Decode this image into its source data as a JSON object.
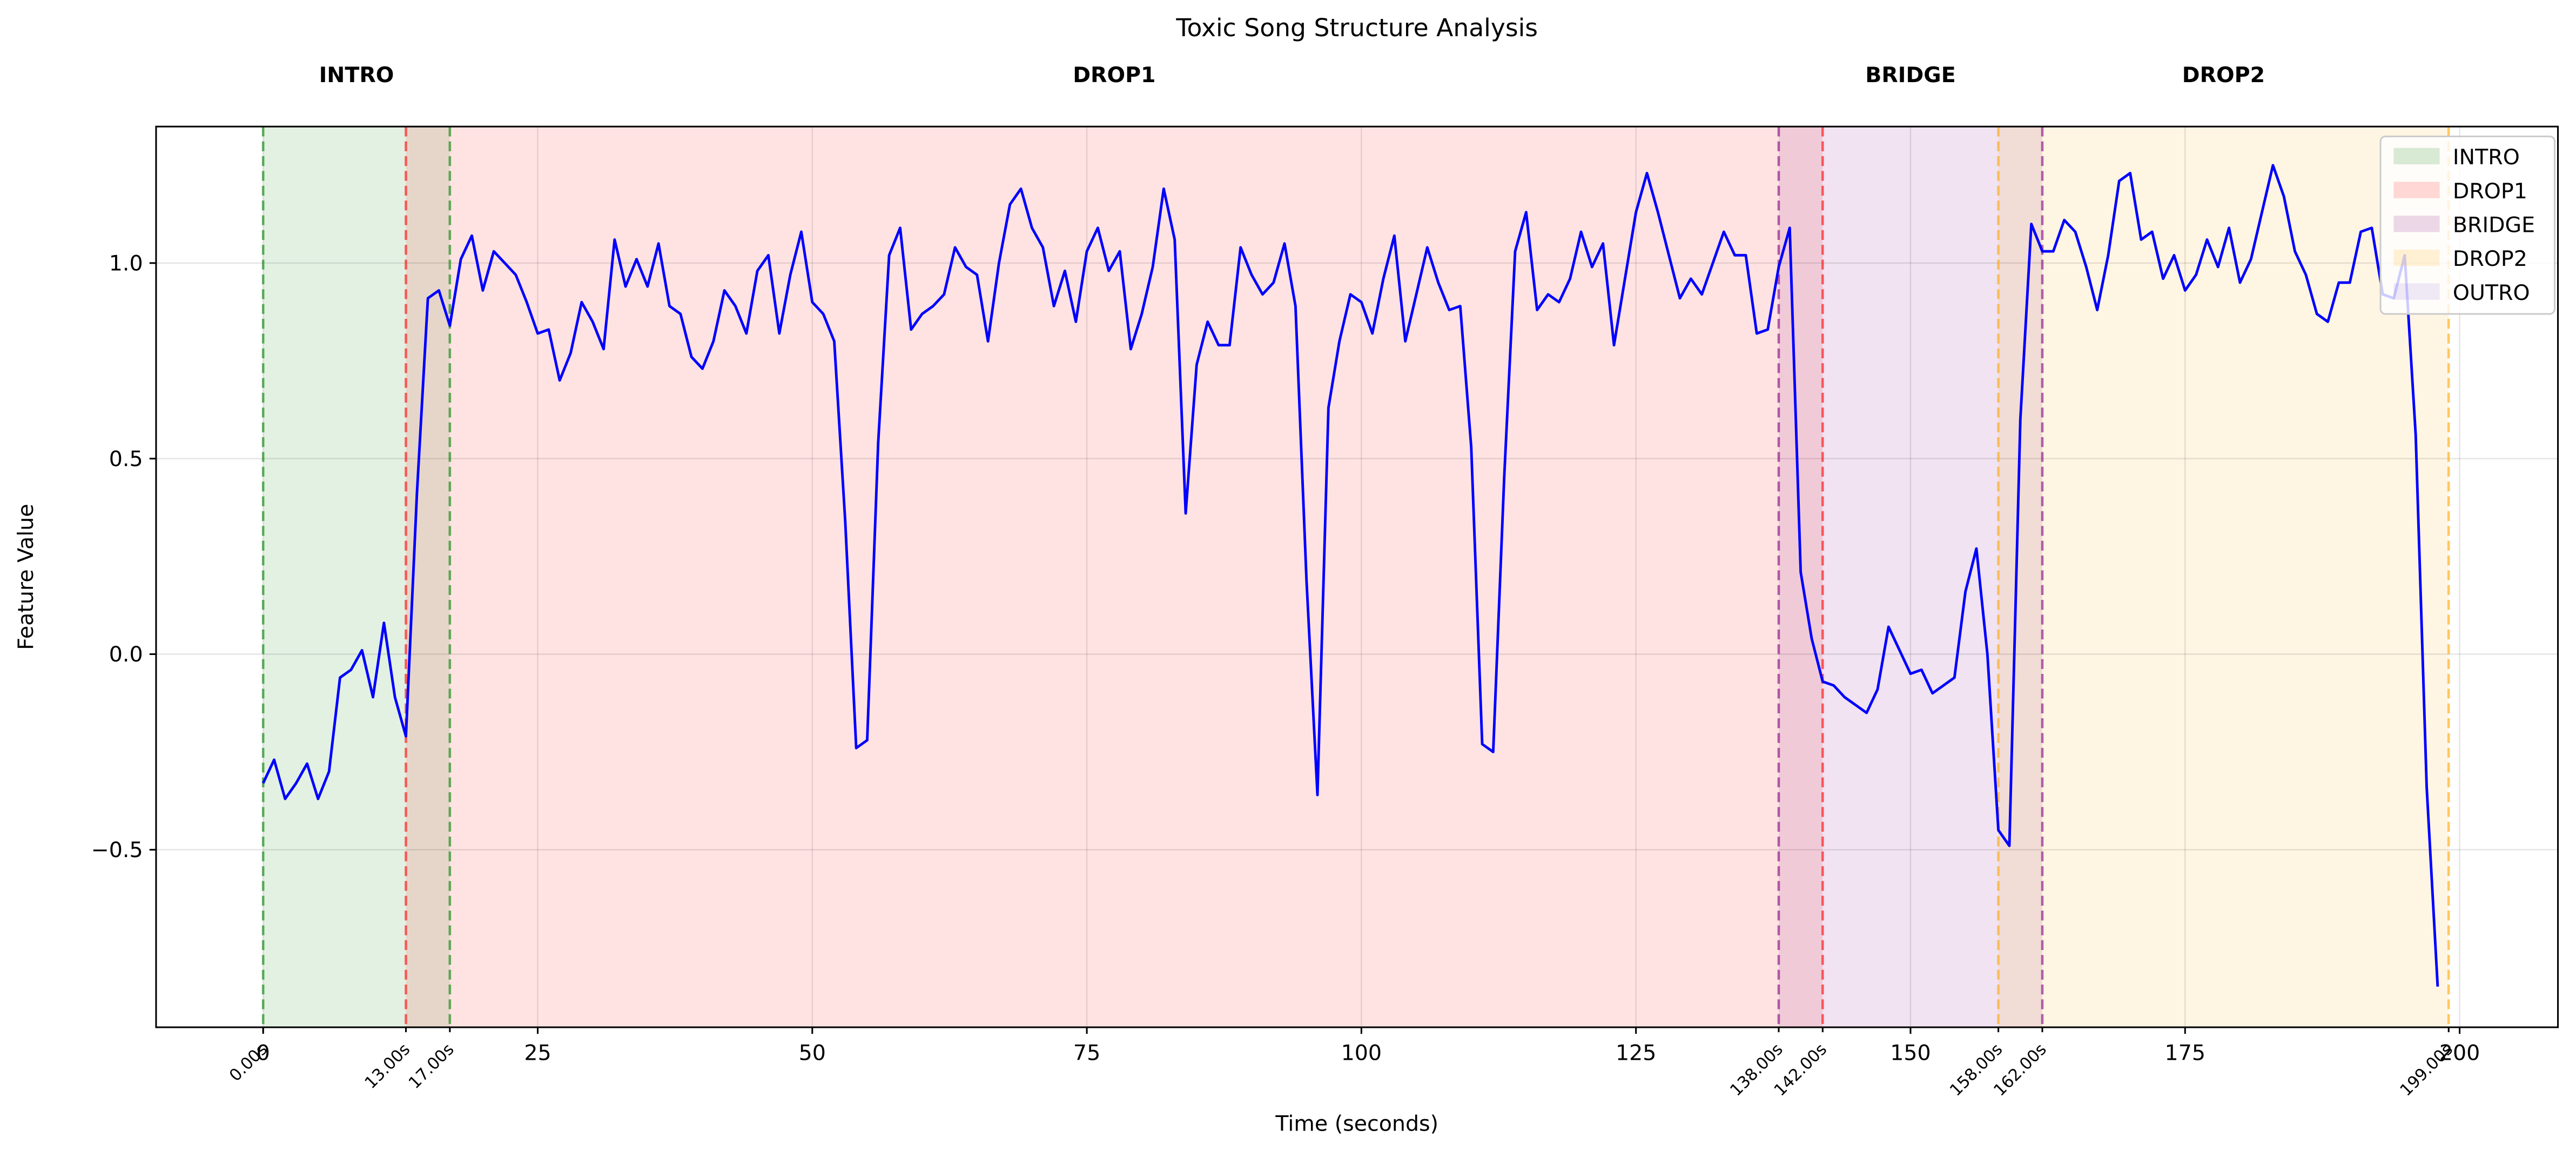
{
  "chart_data": {
    "type": "line",
    "title": "Toxic Song Structure Analysis",
    "x_label": "Time (seconds)",
    "y_label": "Feature Value",
    "xlim": [
      -9.75,
      208.95
    ],
    "ylim": [
      -0.954,
      1.349
    ],
    "xticks": [
      0,
      25,
      50,
      75,
      100,
      125,
      150,
      175,
      200
    ],
    "yticks": [
      {
        "value": -0.5,
        "label": "−0.5"
      },
      {
        "value": 0,
        "label": "0.0"
      },
      0.5,
      {
        "value": 1,
        "label": "1.0"
      }
    ],
    "grid": true,
    "legend": "upper right",
    "sections": [
      {
        "name": "INTRO",
        "start": 0,
        "end": 17,
        "color": "green"
      },
      {
        "name": "DROP1",
        "start": 13,
        "end": 142,
        "color": "red"
      },
      {
        "name": "BRIDGE",
        "start": 138,
        "end": 162,
        "color": "purple"
      },
      {
        "name": "DROP2",
        "start": 158,
        "end": 199,
        "color": "orange"
      },
      {
        "name": "OUTRO",
        "color": "#9370db"
      }
    ],
    "boundary_ticks": [
      {
        "value": 0,
        "label": "0.00s"
      },
      {
        "value": 13,
        "label": "13.00s"
      },
      {
        "value": 17,
        "label": "17.00s"
      },
      {
        "value": 138,
        "label": "138.00s"
      },
      {
        "value": 142,
        "label": "142.00s"
      },
      {
        "value": 158,
        "label": "158.00s"
      },
      {
        "value": 162,
        "label": "162.00s"
      },
      {
        "value": 199,
        "label": "199.00s"
      }
    ],
    "series": [
      {
        "color": "blue",
        "x": [
          0,
          1,
          2,
          3,
          4,
          5,
          6,
          7,
          8,
          9,
          10,
          11,
          12,
          13,
          14,
          15,
          16,
          17,
          18,
          19,
          20,
          21,
          22,
          23,
          24,
          25,
          26,
          27,
          28,
          29,
          30,
          31,
          32,
          33,
          34,
          35,
          36,
          37,
          38,
          39,
          40,
          41,
          42,
          43,
          44,
          45,
          46,
          47,
          48,
          49,
          50,
          51,
          52,
          53,
          54,
          55,
          56,
          57,
          58,
          59,
          60,
          61,
          62,
          63,
          64,
          65,
          66,
          67,
          68,
          69,
          70,
          71,
          72,
          73,
          74,
          75,
          76,
          77,
          78,
          79,
          80,
          81,
          82,
          83,
          84,
          85,
          86,
          87,
          88,
          89,
          90,
          91,
          92,
          93,
          94,
          95,
          96,
          97,
          98,
          99,
          100,
          101,
          102,
          103,
          104,
          105,
          106,
          107,
          108,
          109,
          110,
          111,
          112,
          113,
          114,
          115,
          116,
          117,
          118,
          119,
          120,
          121,
          122,
          123,
          124,
          125,
          126,
          127,
          128,
          129,
          130,
          131,
          132,
          133,
          134,
          135,
          136,
          137,
          138,
          139,
          140,
          141,
          142,
          143,
          144,
          145,
          146,
          147,
          148,
          149,
          150,
          151,
          152,
          153,
          154,
          155,
          156,
          157,
          158,
          159,
          160,
          161,
          162,
          163,
          164,
          165,
          166,
          167,
          168,
          169,
          170,
          171,
          172,
          173,
          174,
          175,
          176,
          177,
          178,
          179,
          180,
          181,
          182,
          183,
          184,
          185,
          186,
          187,
          188,
          189,
          190,
          191,
          192,
          193,
          194,
          195,
          196,
          197,
          198
        ],
        "values": [
          -0.33,
          -0.27,
          -0.37,
          -0.33,
          -0.28,
          -0.37,
          -0.3,
          -0.06,
          -0.04,
          0.01,
          -0.11,
          0.08,
          -0.11,
          -0.21,
          0.41,
          0.91,
          0.93,
          0.84,
          1.01,
          1.07,
          0.93,
          1.03,
          1.0,
          0.97,
          0.9,
          0.82,
          0.83,
          0.7,
          0.77,
          0.9,
          0.85,
          0.78,
          1.06,
          0.94,
          1.01,
          0.94,
          1.05,
          0.89,
          0.87,
          0.76,
          0.73,
          0.8,
          0.93,
          0.89,
          0.82,
          0.98,
          1.02,
          0.82,
          0.97,
          1.08,
          0.9,
          0.87,
          0.8,
          0.34,
          -0.24,
          -0.22,
          0.54,
          1.02,
          1.09,
          0.83,
          0.87,
          0.89,
          0.92,
          1.04,
          0.99,
          0.97,
          0.8,
          1.0,
          1.15,
          1.19,
          1.09,
          1.04,
          0.89,
          0.98,
          0.85,
          1.03,
          1.09,
          0.98,
          1.03,
          0.78,
          0.87,
          0.99,
          1.19,
          1.06,
          0.36,
          0.74,
          0.85,
          0.79,
          0.79,
          1.04,
          0.97,
          0.92,
          0.95,
          1.05,
          0.89,
          0.19,
          -0.36,
          0.63,
          0.8,
          0.92,
          0.9,
          0.82,
          0.96,
          1.07,
          0.8,
          0.92,
          1.04,
          0.95,
          0.88,
          0.89,
          0.53,
          -0.23,
          -0.25,
          0.45,
          1.03,
          1.13,
          0.88,
          0.92,
          0.9,
          0.96,
          1.08,
          0.99,
          1.05,
          0.79,
          0.96,
          1.13,
          1.23,
          1.13,
          1.02,
          0.91,
          0.96,
          0.92,
          1.0,
          1.08,
          1.02,
          1.02,
          0.82,
          0.83,
          0.99,
          1.09,
          0.21,
          0.04,
          -0.07,
          -0.08,
          -0.11,
          -0.13,
          -0.15,
          -0.09,
          0.07,
          0.01,
          -0.05,
          -0.04,
          -0.1,
          -0.08,
          -0.06,
          0.16,
          0.27,
          0.0,
          -0.45,
          -0.49,
          0.6,
          1.1,
          1.03,
          1.03,
          1.11,
          1.08,
          0.99,
          0.88,
          1.02,
          1.21,
          1.23,
          1.06,
          1.08,
          0.96,
          1.02,
          0.93,
          0.97,
          1.06,
          0.99,
          1.09,
          0.95,
          1.01,
          1.13,
          1.25,
          1.17,
          1.03,
          0.97,
          0.87,
          0.85,
          0.95,
          0.95,
          1.08,
          1.09,
          0.92,
          0.91,
          1.02,
          0.56,
          -0.34,
          -0.85
        ]
      }
    ]
  }
}
